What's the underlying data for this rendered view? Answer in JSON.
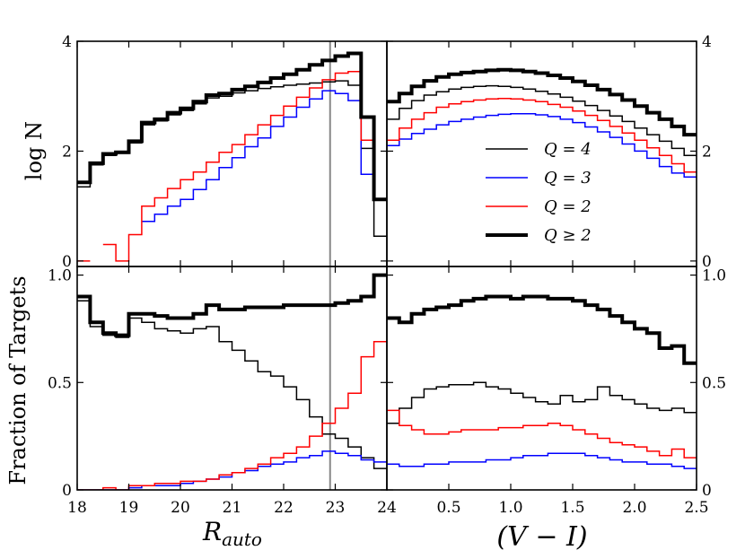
{
  "chart_data": {
    "type": "step-histogram",
    "ylabel_top": "log N",
    "ylabel_bottom": "Fraction of Targets",
    "xlabel_left": "R",
    "xlabel_left_sub": "auto",
    "xlabel_right": "(V − I)",
    "legend": {
      "placement": "right",
      "entries": [
        {
          "label": "Q = 4",
          "color": "#000000",
          "width": 1.5
        },
        {
          "label": "Q = 3",
          "color": "#0000ff",
          "width": 1.5
        },
        {
          "label": "Q = 2",
          "color": "#ff0000",
          "width": 1.5
        },
        {
          "label": "Q ≥ 2",
          "color": "#000000",
          "width": 4
        }
      ]
    },
    "panels": {
      "top_left": {
        "xlim": [
          18,
          24
        ],
        "ylim": [
          -0.1,
          4.0
        ],
        "xticks": [
          18,
          19,
          20,
          21,
          22,
          23,
          24
        ],
        "yticks": [
          0,
          2,
          4
        ],
        "yticklabels": [
          "0",
          "2",
          "4"
        ],
        "vline": 22.9,
        "bin_edges": [
          18,
          18.25,
          18.5,
          18.75,
          19,
          19.25,
          19.5,
          19.75,
          20,
          20.25,
          20.5,
          20.75,
          21,
          21.25,
          21.5,
          21.75,
          22,
          22.25,
          22.5,
          22.75,
          23,
          23.25,
          23.5,
          23.75,
          24
        ],
        "series": [
          {
            "name": "Q ≥ 2",
            "color": "#000000",
            "width": 4,
            "values": [
              1.43,
              1.78,
              1.95,
              1.98,
              2.18,
              2.52,
              2.58,
              2.7,
              2.78,
              2.9,
              3.02,
              3.05,
              3.12,
              3.18,
              3.25,
              3.33,
              3.4,
              3.48,
              3.57,
              3.65,
              3.73,
              3.78,
              2.62,
              1.12
            ]
          },
          {
            "name": "Q = 4",
            "color": "#000000",
            "width": 1.5,
            "values": [
              1.35,
              1.75,
              1.92,
              1.96,
              2.15,
              2.48,
              2.55,
              2.66,
              2.74,
              2.86,
              2.97,
              3.0,
              3.06,
              3.1,
              3.14,
              3.17,
              3.2,
              3.22,
              3.24,
              3.26,
              3.28,
              3.2,
              2.05,
              0.45
            ]
          },
          {
            "name": "Q = 3",
            "color": "#0000ff",
            "width": 1.5,
            "values": [
              null,
              null,
              null,
              null,
              null,
              0.72,
              0.85,
              1.0,
              1.12,
              1.3,
              1.48,
              1.7,
              1.88,
              2.08,
              2.24,
              2.45,
              2.62,
              2.8,
              2.95,
              3.1,
              3.05,
              2.92,
              1.58,
              null
            ]
          },
          {
            "name": "Q = 2",
            "color": "#ff0000",
            "width": 1.5,
            "values": [
              0.0,
              null,
              0.3,
              0.0,
              0.48,
              1.0,
              1.15,
              1.32,
              1.48,
              1.62,
              1.8,
              1.98,
              2.12,
              2.3,
              2.48,
              2.65,
              2.82,
              2.98,
              3.15,
              3.3,
              3.42,
              3.45,
              2.2,
              null
            ]
          }
        ]
      },
      "top_right": {
        "xlim": [
          0.0,
          2.5
        ],
        "ylim": [
          -0.1,
          4.0
        ],
        "xticks": [
          0.5,
          1.0,
          1.5,
          2.0,
          2.5
        ],
        "yticks": [
          0,
          2,
          4
        ],
        "yticklabels": [
          "0",
          "2",
          "4"
        ],
        "bin_edges": [
          0.0,
          0.1,
          0.2,
          0.3,
          0.4,
          0.5,
          0.6,
          0.7,
          0.8,
          0.9,
          1.0,
          1.1,
          1.2,
          1.3,
          1.4,
          1.5,
          1.6,
          1.7,
          1.8,
          1.9,
          2.0,
          2.1,
          2.2,
          2.3,
          2.4,
          2.5
        ],
        "series": [
          {
            "name": "Q ≥ 2",
            "color": "#000000",
            "width": 4,
            "values": [
              2.9,
              3.05,
              3.18,
              3.28,
              3.35,
              3.4,
              3.43,
              3.45,
              3.47,
              3.48,
              3.47,
              3.45,
              3.42,
              3.38,
              3.33,
              3.27,
              3.2,
              3.12,
              3.03,
              2.93,
              2.82,
              2.7,
              2.58,
              2.45,
              2.3
            ]
          },
          {
            "name": "Q = 4",
            "color": "#000000",
            "width": 1.5,
            "values": [
              2.58,
              2.78,
              2.92,
              3.02,
              3.08,
              3.13,
              3.16,
              3.18,
              3.19,
              3.18,
              3.16,
              3.13,
              3.09,
              3.04,
              2.98,
              2.91,
              2.83,
              2.74,
              2.64,
              2.54,
              2.42,
              2.3,
              2.18,
              2.05,
              1.92
            ]
          },
          {
            "name": "Q = 3",
            "color": "#0000ff",
            "width": 1.5,
            "values": [
              2.1,
              2.22,
              2.32,
              2.4,
              2.48,
              2.54,
              2.58,
              2.62,
              2.65,
              2.67,
              2.68,
              2.68,
              2.66,
              2.63,
              2.58,
              2.52,
              2.44,
              2.35,
              2.25,
              2.13,
              2.0,
              1.87,
              1.72,
              1.6,
              1.53
            ]
          },
          {
            "name": "Q = 2",
            "color": "#ff0000",
            "width": 1.5,
            "values": [
              2.2,
              2.42,
              2.58,
              2.7,
              2.8,
              2.86,
              2.9,
              2.93,
              2.95,
              2.96,
              2.95,
              2.93,
              2.9,
              2.85,
              2.8,
              2.73,
              2.65,
              2.56,
              2.45,
              2.33,
              2.2,
              2.06,
              1.92,
              1.77,
              1.62
            ]
          }
        ]
      },
      "bottom_left": {
        "xlim": [
          18,
          24
        ],
        "ylim": [
          0.0,
          1.04
        ],
        "xticks": [
          18,
          19,
          20,
          21,
          22,
          23,
          24
        ],
        "xticklabels": [
          "18",
          "19",
          "20",
          "21",
          "22",
          "23",
          "24"
        ],
        "yticks": [
          0,
          0.5,
          1.0
        ],
        "yticklabels": [
          "0",
          "0.5",
          "1.0"
        ],
        "vline": 22.9,
        "bin_edges": [
          18,
          18.25,
          18.5,
          18.75,
          19,
          19.25,
          19.5,
          19.75,
          20,
          20.25,
          20.5,
          20.75,
          21,
          21.25,
          21.5,
          21.75,
          22,
          22.25,
          22.5,
          22.75,
          23,
          23.25,
          23.5,
          23.75,
          24
        ],
        "series": [
          {
            "name": "Q ≥ 2",
            "color": "#000000",
            "width": 4,
            "values": [
              0.9,
              0.78,
              0.73,
              0.72,
              0.82,
              0.82,
              0.81,
              0.8,
              0.8,
              0.82,
              0.86,
              0.84,
              0.84,
              0.85,
              0.85,
              0.85,
              0.86,
              0.86,
              0.86,
              0.86,
              0.87,
              0.88,
              0.9,
              1.0
            ]
          },
          {
            "name": "Q = 4",
            "color": "#000000",
            "width": 1.5,
            "values": [
              0.88,
              0.76,
              0.72,
              0.71,
              0.8,
              0.78,
              0.75,
              0.74,
              0.73,
              0.75,
              0.76,
              0.69,
              0.65,
              0.6,
              0.55,
              0.53,
              0.48,
              0.42,
              0.34,
              0.26,
              0.24,
              0.2,
              0.15,
              0.1
            ]
          },
          {
            "name": "Q = 3",
            "color": "#0000ff",
            "width": 1.5,
            "values": [
              0.0,
              0.0,
              0.0,
              0.0,
              0.01,
              0.02,
              0.02,
              0.02,
              0.03,
              0.04,
              0.05,
              0.06,
              0.08,
              0.09,
              0.11,
              0.12,
              0.13,
              0.15,
              0.16,
              0.18,
              0.17,
              0.16,
              0.14,
              0.13
            ]
          },
          {
            "name": "Q = 2",
            "color": "#ff0000",
            "width": 1.5,
            "values": [
              0.0,
              0.0,
              0.01,
              0.0,
              0.02,
              0.02,
              0.03,
              0.03,
              0.04,
              0.04,
              0.05,
              0.07,
              0.08,
              0.1,
              0.12,
              0.15,
              0.17,
              0.2,
              0.25,
              0.31,
              0.38,
              0.45,
              0.62,
              0.69
            ]
          }
        ]
      },
      "bottom_right": {
        "xlim": [
          0.0,
          2.5
        ],
        "ylim": [
          0.0,
          1.04
        ],
        "xticks": [
          0.5,
          1.0,
          1.5,
          2.0,
          2.5
        ],
        "xticklabels": [
          "0.5",
          "1.0",
          "1.5",
          "2.0",
          "2.5"
        ],
        "yticks": [
          0,
          0.5,
          1.0
        ],
        "yticklabels": [
          "0",
          "0.5",
          "1.0"
        ],
        "bin_edges": [
          0.0,
          0.1,
          0.2,
          0.3,
          0.4,
          0.5,
          0.6,
          0.7,
          0.8,
          0.9,
          1.0,
          1.1,
          1.2,
          1.3,
          1.4,
          1.5,
          1.6,
          1.7,
          1.8,
          1.9,
          2.0,
          2.1,
          2.2,
          2.3,
          2.4,
          2.5
        ],
        "series": [
          {
            "name": "Q ≥ 2",
            "color": "#000000",
            "width": 4,
            "values": [
              0.8,
              0.78,
              0.82,
              0.84,
              0.85,
              0.86,
              0.88,
              0.89,
              0.9,
              0.9,
              0.89,
              0.9,
              0.9,
              0.89,
              0.89,
              0.88,
              0.86,
              0.84,
              0.81,
              0.78,
              0.75,
              0.73,
              0.66,
              0.67,
              0.59
            ]
          },
          {
            "name": "Q = 4",
            "color": "#000000",
            "width": 1.5,
            "values": [
              0.31,
              0.38,
              0.43,
              0.47,
              0.48,
              0.49,
              0.49,
              0.5,
              0.48,
              0.47,
              0.45,
              0.43,
              0.41,
              0.4,
              0.44,
              0.41,
              0.42,
              0.48,
              0.44,
              0.42,
              0.4,
              0.38,
              0.37,
              0.38,
              0.36
            ]
          },
          {
            "name": "Q = 3",
            "color": "#0000ff",
            "width": 1.5,
            "values": [
              0.12,
              0.11,
              0.11,
              0.12,
              0.12,
              0.13,
              0.13,
              0.13,
              0.14,
              0.14,
              0.15,
              0.16,
              0.16,
              0.17,
              0.17,
              0.17,
              0.16,
              0.15,
              0.14,
              0.13,
              0.13,
              0.12,
              0.12,
              0.11,
              0.1
            ]
          },
          {
            "name": "Q = 2",
            "color": "#ff0000",
            "width": 1.5,
            "values": [
              0.37,
              0.3,
              0.28,
              0.26,
              0.26,
              0.27,
              0.28,
              0.28,
              0.28,
              0.29,
              0.29,
              0.3,
              0.3,
              0.31,
              0.3,
              0.28,
              0.26,
              0.24,
              0.22,
              0.21,
              0.2,
              0.18,
              0.16,
              0.19,
              0.15
            ]
          }
        ]
      }
    }
  }
}
